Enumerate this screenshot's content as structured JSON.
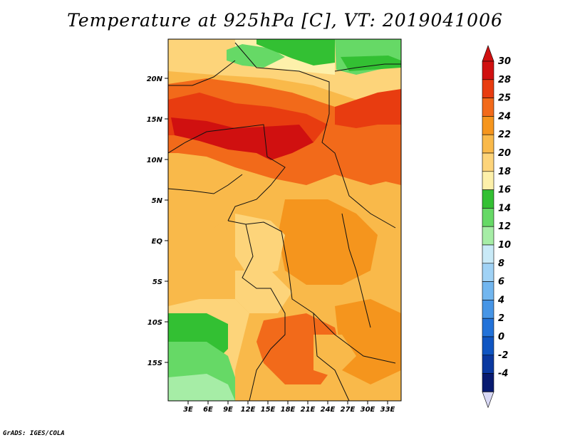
{
  "title": "Temperature at 925hPa [C], VT: 2019041006",
  "credit": "GrADS: IGES/COLA",
  "map": {
    "lat_ticks": [
      "20N",
      "15N",
      "10N",
      "5N",
      "EQ",
      "5S",
      "10S",
      "15S"
    ],
    "lon_ticks": [
      "3E",
      "6E",
      "9E",
      "12E",
      "15E",
      "18E",
      "21E",
      "24E",
      "27E",
      "30E",
      "33E"
    ]
  },
  "colorbar": {
    "labels": [
      "30",
      "28",
      "25",
      "24",
      "22",
      "20",
      "18",
      "16",
      "14",
      "12",
      "10",
      "8",
      "6",
      "4",
      "2",
      "0",
      "-2",
      "-4"
    ],
    "colors": [
      "#d01010",
      "#e83c10",
      "#f26a1a",
      "#f5951d",
      "#f9b94a",
      "#fdd47a",
      "#fdf0aa",
      "#33c033",
      "#66d966",
      "#a6eda6",
      "#c9eaf7",
      "#a0d2f5",
      "#72b6ef",
      "#4695e6",
      "#2272d9",
      "#0f55c2",
      "#0a38a0",
      "#081a70"
    ],
    "top_arrow_color": "#d01010",
    "bottom_arrow_color": "#d8d8f5"
  }
}
